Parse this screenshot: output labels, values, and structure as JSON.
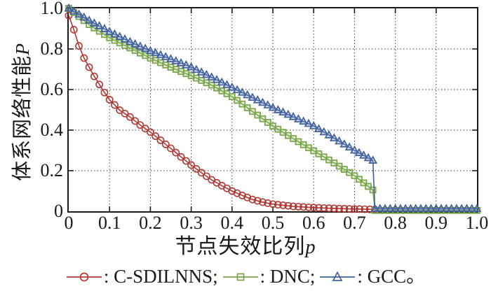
{
  "figure": {
    "background": "#ffffff",
    "axis_color": "#1a1a1a",
    "grid": {
      "style": "dotted",
      "color": "#3a3a3a"
    },
    "x_axis": {
      "title_text": "节点失效比列",
      "title_var": "p",
      "tick_labels": [
        "0",
        "0.1",
        "0.2",
        "0.3",
        "0.4",
        "0.5",
        "0.6",
        "0.7",
        "0.8",
        "0.9",
        "1.0"
      ]
    },
    "y_axis": {
      "title_text": "体系网络性能",
      "title_var": "P",
      "tick_labels": [
        "1.0",
        "0.8",
        "0.6",
        "0.4",
        "0.2",
        "0"
      ]
    }
  },
  "chart_data": {
    "type": "line",
    "title": "",
    "xlabel": "节点失效比列p",
    "ylabel": "体系网络性能P",
    "xlim": [
      0,
      1.0
    ],
    "ylim": [
      0,
      1.0
    ],
    "x_ticks": [
      0,
      0.1,
      0.2,
      0.3,
      0.4,
      0.5,
      0.6,
      0.7,
      0.8,
      0.9,
      1.0
    ],
    "y_ticks": [
      0,
      0.2,
      0.4,
      0.6,
      0.8,
      1.0
    ],
    "grid": true,
    "legend_position": "bottom",
    "marker_step": 0.0125,
    "series": [
      {
        "name": "C-SDILNNS",
        "marker": "circle",
        "color": "#b13832",
        "fill": "none",
        "points": [
          [
            0,
            0.965
          ],
          [
            0.0125,
            0.895
          ],
          [
            0.025,
            0.815
          ],
          [
            0.0375,
            0.755
          ],
          [
            0.05,
            0.71
          ],
          [
            0.0625,
            0.665
          ],
          [
            0.075,
            0.625
          ],
          [
            0.0875,
            0.585
          ],
          [
            0.1,
            0.55
          ],
          [
            0.125,
            0.498
          ],
          [
            0.15,
            0.465
          ],
          [
            0.175,
            0.425
          ],
          [
            0.2,
            0.39
          ],
          [
            0.225,
            0.35
          ],
          [
            0.25,
            0.31
          ],
          [
            0.275,
            0.268
          ],
          [
            0.3,
            0.228
          ],
          [
            0.325,
            0.19
          ],
          [
            0.35,
            0.155
          ],
          [
            0.375,
            0.126
          ],
          [
            0.4,
            0.1
          ],
          [
            0.425,
            0.078
          ],
          [
            0.45,
            0.058
          ],
          [
            0.475,
            0.045
          ],
          [
            0.5,
            0.035
          ],
          [
            0.55,
            0.024
          ],
          [
            0.6,
            0.018
          ],
          [
            0.65,
            0.014
          ],
          [
            0.7,
            0.011
          ],
          [
            0.75,
            0.009
          ]
        ]
      },
      {
        "name": "DNC",
        "marker": "square",
        "color": "#7aa44a",
        "fill": "rgba(140,178,98,0.25)",
        "points": [
          [
            0,
            1.0
          ],
          [
            0.05,
            0.92
          ],
          [
            0.1,
            0.855
          ],
          [
            0.15,
            0.805
          ],
          [
            0.2,
            0.755
          ],
          [
            0.25,
            0.71
          ],
          [
            0.3,
            0.668
          ],
          [
            0.35,
            0.622
          ],
          [
            0.4,
            0.565
          ],
          [
            0.45,
            0.492
          ],
          [
            0.5,
            0.42
          ],
          [
            0.55,
            0.358
          ],
          [
            0.6,
            0.298
          ],
          [
            0.65,
            0.238
          ],
          [
            0.7,
            0.175
          ],
          [
            0.745,
            0.105
          ],
          [
            0.75,
            0.004
          ],
          [
            1.0,
            0.004
          ]
        ]
      },
      {
        "name": "GCC",
        "marker": "triangle",
        "color": "#41609f",
        "fill": "rgba(110,136,186,0.30)",
        "points": [
          [
            0,
            1.0
          ],
          [
            0.05,
            0.94
          ],
          [
            0.1,
            0.885
          ],
          [
            0.15,
            0.835
          ],
          [
            0.2,
            0.79
          ],
          [
            0.25,
            0.75
          ],
          [
            0.3,
            0.71
          ],
          [
            0.35,
            0.66
          ],
          [
            0.4,
            0.61
          ],
          [
            0.45,
            0.56
          ],
          [
            0.5,
            0.51
          ],
          [
            0.55,
            0.465
          ],
          [
            0.6,
            0.42
          ],
          [
            0.65,
            0.36
          ],
          [
            0.7,
            0.3
          ],
          [
            0.745,
            0.25
          ],
          [
            0.75,
            0.012
          ],
          [
            1.0,
            0.012
          ]
        ]
      }
    ]
  },
  "legend": {
    "items": [
      {
        "series": "C-SDILNNS",
        "label": ": C-SDILNNS; "
      },
      {
        "series": "DNC",
        "label": ": DNC; "
      },
      {
        "series": "GCC",
        "label": ": GCC。"
      }
    ]
  }
}
